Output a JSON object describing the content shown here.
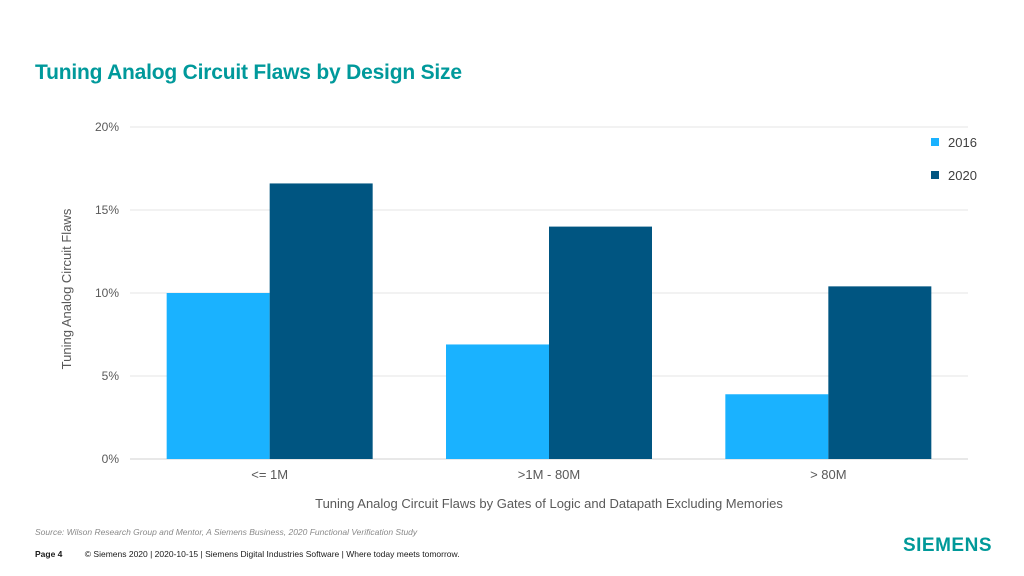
{
  "slide": {
    "title": "Tuning Analog Circuit Flaws by Design Size",
    "source": "Source:  Wilson Research Group and Mentor,  A Siemens Business, 2020 Functional Verification Study",
    "page_label": "Page 4",
    "footer_text": "© Siemens 2020 | 2020-10-15 | Siemens Digital Industries Software | Where today meets tomorrow.",
    "brand": "SIEMENS"
  },
  "chart_data": {
    "type": "bar",
    "title": "",
    "xlabel": "Tuning Analog Circuit Flaws by Gates of Logic and Datapath Excluding Memories",
    "ylabel": "Tuning Analog Circuit Flaws",
    "categories": [
      "<= 1M",
      ">1M - 80M",
      "> 80M"
    ],
    "series": [
      {
        "name": "2016",
        "color": "#1ab2ff",
        "values": [
          10,
          6.9,
          3.9
        ]
      },
      {
        "name": "2020",
        "color": "#005581",
        "values": [
          16.6,
          14,
          10.4
        ]
      }
    ],
    "ylim": [
      0,
      20
    ],
    "yticks": [
      0,
      5,
      10,
      15,
      20
    ],
    "ytick_labels": [
      "0%",
      "5%",
      "10%",
      "15%",
      "20%"
    ],
    "grid": true,
    "legend_position": "top-right"
  }
}
